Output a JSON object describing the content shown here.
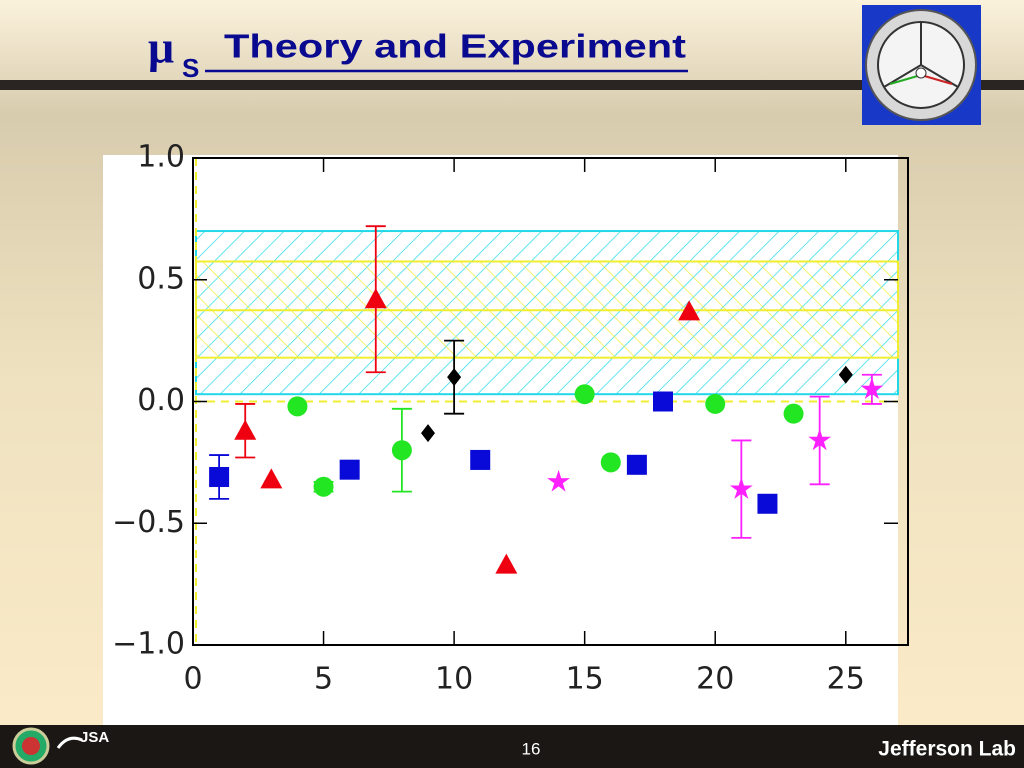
{
  "title_symbol": "μ",
  "title_subscript": "S",
  "title": "Theory and Experiment",
  "logo_text": "JSA",
  "page_number": "16",
  "footer_brand": "Jefferson Lab",
  "chart_data": {
    "type": "scatter",
    "xlim": [
      0,
      27
    ],
    "ylim": [
      -1.0,
      1.0
    ],
    "xticks": [
      0,
      5,
      10,
      15,
      20,
      25
    ],
    "yticks": [
      {
        "value": -1.0,
        "label": "−1.0"
      },
      {
        "value": -0.5,
        "label": "−0.5"
      },
      {
        "value": 0,
        "label": "0.0"
      },
      {
        "value": 0.5,
        "label": "0.5"
      },
      {
        "value": 1.0,
        "label": "1.0"
      }
    ],
    "bands": [
      {
        "color": "#22d8e8",
        "low": 0.03,
        "high": 0.7
      },
      {
        "color": "#f0ee30",
        "low": 0.18,
        "high": 0.575,
        "center": 0.375
      }
    ],
    "series": [
      {
        "marker": "triangle",
        "color": "#ee0010",
        "x": [
          2,
          3,
          7,
          12,
          19
        ],
        "values": [
          -0.12,
          -0.32,
          0.42,
          -0.67,
          0.37
        ],
        "errors": [
          0.11,
          null,
          0.3,
          null,
          null
        ]
      },
      {
        "marker": "circle",
        "color": "#22e622",
        "x": [
          4,
          5,
          8,
          15,
          16,
          20,
          23
        ],
        "values": [
          -0.02,
          -0.35,
          -0.2,
          0.03,
          -0.25,
          -0.01,
          -0.05
        ],
        "errors": [
          null,
          0.02,
          0.17,
          null,
          null,
          null,
          null
        ]
      },
      {
        "marker": "square",
        "color": "#0a0ad8",
        "x": [
          1,
          6,
          11,
          17,
          18,
          22
        ],
        "values": [
          -0.31,
          -0.28,
          -0.24,
          -0.26,
          0.0,
          -0.42
        ],
        "errors": [
          0.09,
          null,
          null,
          null,
          0.02,
          null
        ]
      },
      {
        "marker": "diamond",
        "color": "#000000",
        "x": [
          9,
          10,
          25
        ],
        "values": [
          -0.13,
          0.1,
          0.11
        ],
        "errors": [
          null,
          0.15,
          null
        ]
      },
      {
        "marker": "star",
        "color": "#ff20ff",
        "x": [
          14,
          21,
          24,
          26
        ],
        "values": [
          -0.33,
          -0.36,
          -0.16,
          0.05
        ],
        "errors": [
          null,
          0.2,
          0.18,
          0.06
        ]
      }
    ]
  }
}
